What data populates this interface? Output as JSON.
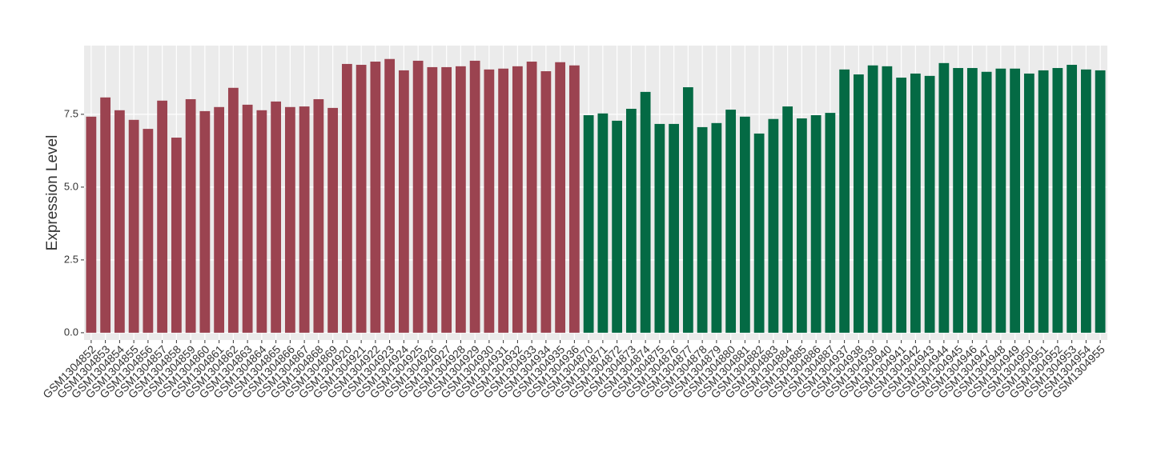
{
  "chart_data": {
    "type": "bar",
    "ylabel": "Expression Level",
    "categories": [
      "GSM1304852",
      "GSM1304853",
      "GSM1304854",
      "GSM1304855",
      "GSM1304856",
      "GSM1304857",
      "GSM1304858",
      "GSM1304859",
      "GSM1304860",
      "GSM1304861",
      "GSM1304862",
      "GSM1304863",
      "GSM1304864",
      "GSM1304865",
      "GSM1304866",
      "GSM1304867",
      "GSM1304868",
      "GSM1304869",
      "GSM1304920",
      "GSM1304921",
      "GSM1304922",
      "GSM1304923",
      "GSM1304924",
      "GSM1304925",
      "GSM1304926",
      "GSM1304927",
      "GSM1304928",
      "GSM1304929",
      "GSM1304930",
      "GSM1304931",
      "GSM1304932",
      "GSM1304933",
      "GSM1304934",
      "GSM1304935",
      "GSM1304936",
      "GSM1304870",
      "GSM1304871",
      "GSM1304872",
      "GSM1304873",
      "GSM1304874",
      "GSM1304875",
      "GSM1304876",
      "GSM1304877",
      "GSM1304878",
      "GSM1304879",
      "GSM1304880",
      "GSM1304881",
      "GSM1304882",
      "GSM1304883",
      "GSM1304884",
      "GSM1304885",
      "GSM1304886",
      "GSM1304887",
      "GSM1304937",
      "GSM1304938",
      "GSM1304939",
      "GSM1304940",
      "GSM1304941",
      "GSM1304942",
      "GSM1304943",
      "GSM1304944",
      "GSM1304945",
      "GSM1304946",
      "GSM1304947",
      "GSM1304948",
      "GSM1304949",
      "GSM1304950",
      "GSM1304951",
      "GSM1304952",
      "GSM1304953",
      "GSM1304954",
      "GSM1304955"
    ],
    "series": [
      {
        "color": "#9b4350",
        "values": [
          7.42,
          8.08,
          7.64,
          7.31,
          7.0,
          7.97,
          6.7,
          8.02,
          7.61,
          7.75,
          8.41,
          7.83,
          7.64,
          7.94,
          7.75,
          7.77,
          8.02,
          7.72,
          9.23,
          9.2,
          9.31,
          9.4,
          9.01,
          9.34,
          9.12,
          9.12,
          9.15,
          9.34,
          9.04,
          9.07,
          9.15,
          9.31,
          8.98,
          9.29,
          9.18,
          null,
          null,
          null,
          null,
          null,
          null,
          null,
          null,
          null,
          null,
          null,
          null,
          null,
          null,
          null,
          null,
          null,
          null,
          null,
          null,
          null,
          null,
          null,
          null,
          null,
          null,
          null,
          null,
          null,
          null,
          null,
          null,
          null,
          null,
          null,
          null,
          null
        ]
      },
      {
        "color": "#046a44",
        "values": [
          null,
          null,
          null,
          null,
          null,
          null,
          null,
          null,
          null,
          null,
          null,
          null,
          null,
          null,
          null,
          null,
          null,
          null,
          null,
          null,
          null,
          null,
          null,
          null,
          null,
          null,
          null,
          null,
          null,
          null,
          null,
          null,
          null,
          null,
          null,
          7.47,
          7.53,
          7.28,
          7.69,
          8.27,
          7.17,
          7.17,
          8.43,
          7.06,
          7.2,
          7.66,
          7.42,
          6.84,
          7.34,
          7.77,
          7.36,
          7.47,
          7.55,
          9.04,
          8.87,
          9.18,
          9.15,
          8.76,
          8.9,
          8.82,
          9.26,
          9.09,
          9.09,
          8.96,
          9.07,
          9.07,
          8.9,
          9.01,
          9.09,
          9.2,
          9.04,
          9.01
        ]
      }
    ],
    "ylim": [
      -0.25,
      9.86
    ],
    "yticks": [
      {
        "value": 0,
        "label": "0.0"
      },
      2.5,
      {
        "value": 5,
        "label": "5.0"
      },
      7.5
    ],
    "grid": true
  }
}
